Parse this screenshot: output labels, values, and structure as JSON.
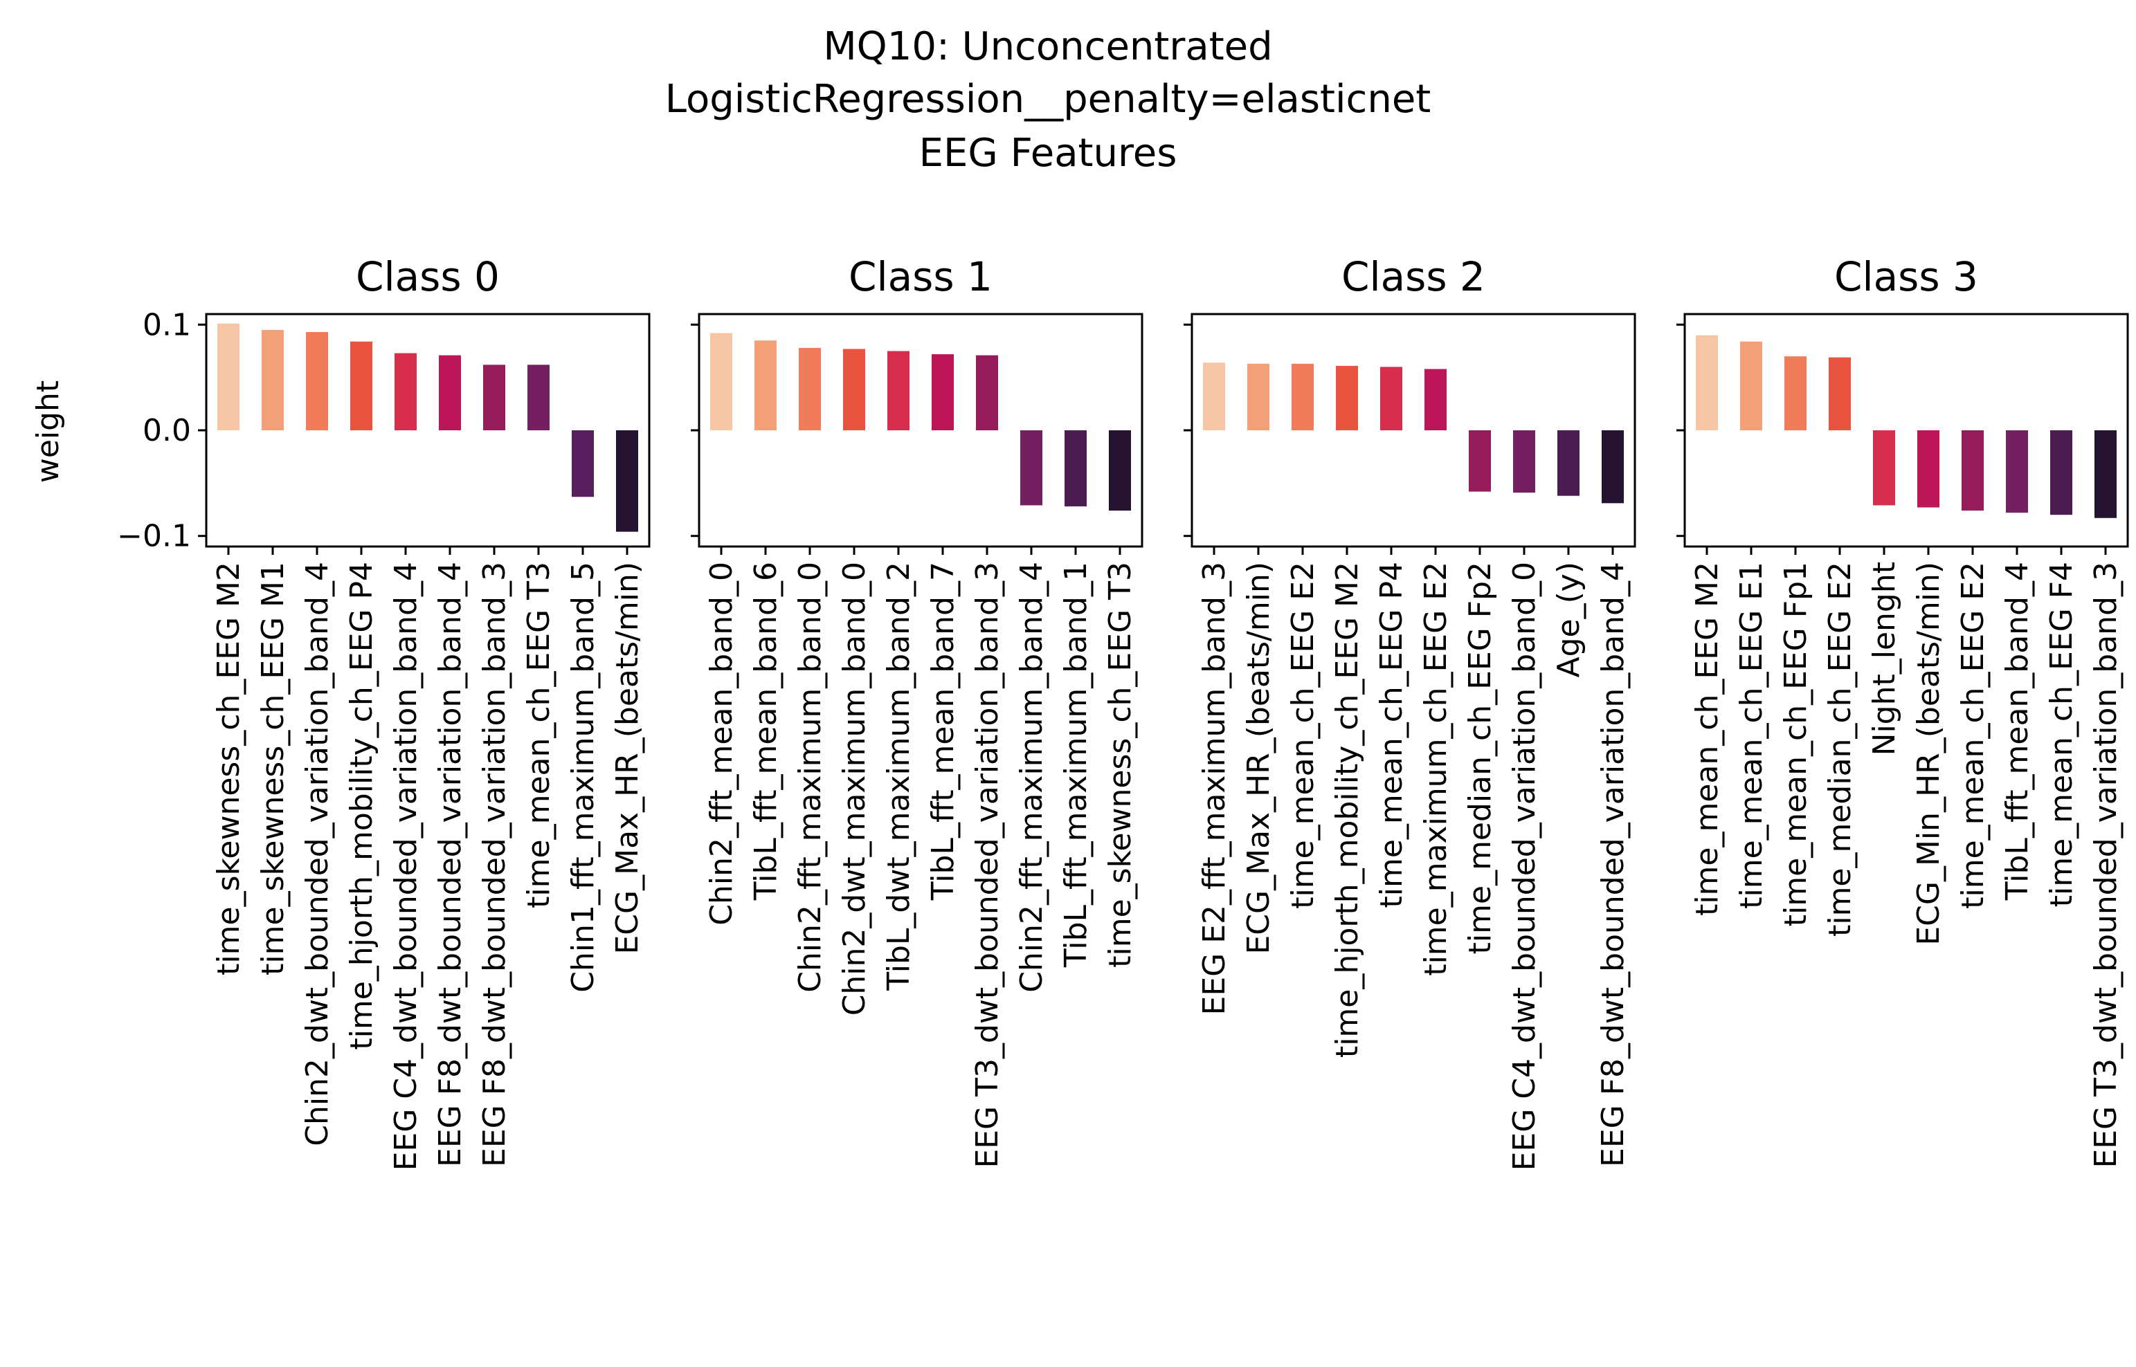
{
  "figure": {
    "title_lines": [
      "MQ10: Unconcentrated",
      "LogisticRegression__penalty=elasticnet",
      "EEG Features"
    ],
    "ylabel": "weight"
  },
  "chart_data": [
    {
      "type": "bar",
      "title": "Class 0",
      "ylabel": "weight",
      "ylim": [
        -0.11,
        0.11
      ],
      "yticks": [
        0.1,
        0.0,
        -0.1
      ],
      "ytick_labels": [
        "0.1",
        "0.0",
        "−0.1"
      ],
      "categories": [
        "time_skewness_ch_EEG M2",
        "time_skewness_ch_EEG M1",
        "Chin2_dwt_bounded_variation_band_4",
        "time_hjorth_mobility_ch_EEG P4",
        "EEG C4_dwt_bounded_variation_band_4",
        "EEG F8_dwt_bounded_variation_band_4",
        "EEG F8_dwt_bounded_variation_band_3",
        "time_mean_ch_EEG T3",
        "Chin1_fft_maximum_band_5",
        "ECG_Max_HR_(beats/min)"
      ],
      "values": [
        0.101,
        0.095,
        0.093,
        0.084,
        0.073,
        0.071,
        0.062,
        0.062,
        -0.063,
        -0.096
      ],
      "colors": [
        "#f6c5a3",
        "#f3a079",
        "#f07c59",
        "#e95440",
        "#d82e4d",
        "#bc1659",
        "#971c5b",
        "#742060",
        "#5a1e5f",
        "#261231"
      ]
    },
    {
      "type": "bar",
      "title": "Class 1",
      "ylim": [
        -0.11,
        0.11
      ],
      "yticks": [
        0.1,
        0.0,
        -0.1
      ],
      "categories": [
        "Chin2_fft_mean_band_0",
        "TibL_fft_mean_band_6",
        "Chin2_fft_maximum_band_0",
        "Chin2_dwt_maximum_band_0",
        "TibL_dwt_maximum_band_2",
        "TibL_fft_mean_band_7",
        "EEG T3_dwt_bounded_variation_band_3",
        "Chin2_fft_maximum_band_4",
        "TibL_fft_maximum_band_1",
        "time_skewness_ch_EEG T3"
      ],
      "values": [
        0.092,
        0.085,
        0.078,
        0.077,
        0.075,
        0.072,
        0.071,
        -0.071,
        -0.072,
        -0.076
      ],
      "colors": [
        "#f6c5a3",
        "#f3a079",
        "#f07c59",
        "#e95440",
        "#d82e4d",
        "#bc1659",
        "#971c5b",
        "#742060",
        "#4a1c4f",
        "#261231"
      ]
    },
    {
      "type": "bar",
      "title": "Class 2",
      "ylim": [
        -0.11,
        0.11
      ],
      "yticks": [
        0.1,
        0.0,
        -0.1
      ],
      "categories": [
        "EEG E2_fft_maximum_band_3",
        "ECG_Max_HR_(beats/min)",
        "time_mean_ch_EEG E2",
        "time_hjorth_mobility_ch_EEG M2",
        "time_mean_ch_EEG P4",
        "time_maximum_ch_EEG E2",
        "time_median_ch_EEG Fp2",
        "EEG C4_dwt_bounded_variation_band_0",
        "Age_(y)",
        "EEG F8_dwt_bounded_variation_band_4"
      ],
      "values": [
        0.064,
        0.063,
        0.063,
        0.061,
        0.06,
        0.058,
        -0.058,
        -0.059,
        -0.062,
        -0.069
      ],
      "colors": [
        "#f6c5a3",
        "#f3a079",
        "#f07c59",
        "#e95440",
        "#d82e4d",
        "#bc1659",
        "#971c5b",
        "#742060",
        "#4a1c4f",
        "#261231"
      ]
    },
    {
      "type": "bar",
      "title": "Class 3",
      "ylim": [
        -0.11,
        0.11
      ],
      "yticks": [
        0.1,
        0.0,
        -0.1
      ],
      "categories": [
        "time_mean_ch_EEG M2",
        "time_mean_ch_EEG E1",
        "time_mean_ch_EEG Fp1",
        "time_median_ch_EEG E2",
        "Night_lenght",
        "ECG_Min_HR_(beats/min)",
        "time_mean_ch_EEG E2",
        "TibL_fft_mean_band_4",
        "time_mean_ch_EEG F4",
        "EEG T3_dwt_bounded_variation_band_3"
      ],
      "values": [
        0.09,
        0.084,
        0.07,
        0.069,
        -0.071,
        -0.073,
        -0.076,
        -0.078,
        -0.08,
        -0.083
      ],
      "colors": [
        "#f6c5a3",
        "#f3a079",
        "#f07c59",
        "#e95440",
        "#d82e4d",
        "#bc1659",
        "#971c5b",
        "#742060",
        "#4a1c4f",
        "#261231"
      ]
    }
  ]
}
